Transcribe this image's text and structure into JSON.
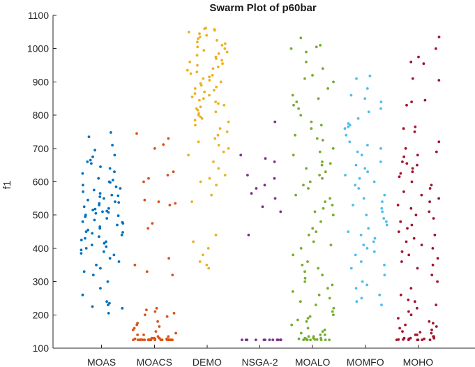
{
  "chart_data": {
    "type": "scatter",
    "subtype": "swarm",
    "title": "Swarm Plot of p60bar",
    "xlabel": "",
    "ylabel": "f1",
    "ylim": [
      100,
      1100
    ],
    "yticks": [
      100,
      200,
      300,
      400,
      500,
      600,
      700,
      800,
      900,
      1000,
      1100
    ],
    "grid": false,
    "legend": "none",
    "categories": [
      "MOAS",
      "MOACS",
      "DEMO",
      "NSGA-2",
      "MOALO",
      "MOMFO",
      "MOHO"
    ],
    "colors": [
      "#0072BD",
      "#D95319",
      "#EDB120",
      "#7E2F8E",
      "#77AC30",
      "#4DBEEE",
      "#A2142F"
    ],
    "series": [
      {
        "values": [
          748,
          735,
          710,
          695,
          680,
          675,
          665,
          660,
          655,
          645,
          640,
          630,
          625,
          610,
          605,
          600,
          598,
          590,
          585,
          580,
          575,
          570,
          565,
          560,
          558,
          555,
          550,
          545,
          540,
          538,
          535,
          530,
          525,
          520,
          518,
          515,
          512,
          510,
          508,
          505,
          500,
          498,
          495,
          490,
          485,
          480,
          478,
          475,
          470,
          465,
          460,
          455,
          450,
          448,
          445,
          440,
          435,
          430,
          425,
          420,
          415,
          410,
          405,
          400,
          395,
          390,
          385,
          380,
          370,
          360,
          350,
          340,
          330,
          320,
          300,
          280,
          260,
          240,
          235,
          230,
          225,
          220,
          205
        ]
      },
      {
        "values": [
          745,
          730,
          712,
          700,
          630,
          620,
          610,
          600,
          545,
          540,
          535,
          530,
          475,
          460,
          370,
          350,
          330,
          320,
          220,
          215,
          210,
          205,
          200,
          195,
          180,
          175,
          170,
          165,
          160,
          155,
          150,
          145,
          140,
          140,
          135,
          135,
          130,
          130,
          130,
          128,
          128,
          128,
          126,
          126,
          126,
          126,
          125,
          125,
          125,
          125,
          125,
          125,
          125,
          125,
          125,
          125,
          125,
          125,
          125,
          125,
          125,
          125,
          125,
          125,
          125,
          125,
          125,
          125,
          125,
          125
        ]
      },
      {
        "values": [
          1062,
          1060,
          1058,
          1055,
          1050,
          1045,
          1040,
          1035,
          1030,
          1025,
          1020,
          1015,
          1010,
          1005,
          1000,
          995,
          990,
          985,
          980,
          975,
          970,
          965,
          960,
          955,
          950,
          945,
          940,
          935,
          930,
          925,
          920,
          915,
          910,
          905,
          900,
          895,
          890,
          885,
          880,
          875,
          870,
          865,
          860,
          855,
          850,
          845,
          840,
          835,
          830,
          825,
          820,
          815,
          810,
          805,
          800,
          795,
          790,
          785,
          780,
          770,
          760,
          750,
          740,
          730,
          720,
          710,
          700,
          690,
          680,
          660,
          640,
          620,
          610,
          600,
          590,
          560,
          540,
          440,
          420,
          400,
          380,
          360,
          350,
          340
        ]
      },
      {
        "values": [
          780,
          680,
          670,
          660,
          620,
          610,
          590,
          580,
          565,
          550,
          525,
          510,
          440,
          125,
          125,
          125,
          125,
          125,
          125,
          125,
          125,
          125,
          125,
          125,
          125,
          125,
          125
        ]
      },
      {
        "values": [
          1032,
          1010,
          1005,
          1000,
          990,
          960,
          940,
          920,
          910,
          900,
          880,
          860,
          850,
          840,
          830,
          820,
          800,
          780,
          770,
          760,
          740,
          730,
          725,
          700,
          690,
          680,
          660,
          655,
          650,
          640,
          630,
          620,
          610,
          600,
          590,
          580,
          560,
          550,
          540,
          530,
          520,
          510,
          500,
          480,
          460,
          450,
          440,
          420,
          410,
          400,
          380,
          360,
          350,
          340,
          330,
          320,
          310,
          300,
          290,
          280,
          270,
          260,
          250,
          240,
          230,
          220,
          210,
          200,
          195,
          190,
          185,
          180,
          170,
          160,
          155,
          150,
          145,
          140,
          140,
          135,
          135,
          130,
          130,
          130,
          128,
          128,
          126,
          126,
          125,
          125,
          125,
          125,
          125,
          125,
          125
        ]
      },
      {
        "values": [
          918,
          910,
          880,
          860,
          850,
          840,
          820,
          810,
          790,
          775,
          770,
          765,
          760,
          740,
          720,
          710,
          700,
          690,
          680,
          660,
          650,
          640,
          630,
          620,
          610,
          600,
          590,
          580,
          560,
          550,
          540,
          530,
          520,
          510,
          500,
          490,
          480,
          470,
          460,
          450,
          440,
          430,
          420,
          410,
          400,
          390,
          380,
          360,
          350,
          340,
          320,
          300,
          290,
          280,
          260,
          250,
          240,
          230
        ]
      },
      {
        "values": [
          1035,
          1000,
          975,
          960,
          955,
          910,
          905,
          845,
          840,
          830,
          765,
          760,
          750,
          720,
          700,
          690,
          680,
          675,
          660,
          655,
          650,
          640,
          630,
          625,
          615,
          600,
          590,
          580,
          570,
          560,
          550,
          540,
          530,
          520,
          510,
          500,
          490,
          480,
          470,
          460,
          450,
          440,
          430,
          420,
          410,
          400,
          390,
          380,
          370,
          360,
          350,
          340,
          320,
          300,
          280,
          260,
          245,
          240,
          230,
          220,
          210,
          200,
          190,
          180,
          175,
          170,
          165,
          160,
          155,
          150,
          148,
          145,
          140,
          140,
          135,
          135,
          130,
          130,
          130,
          128,
          128,
          126,
          126,
          125,
          125,
          125,
          125,
          125,
          125
        ]
      }
    ]
  }
}
